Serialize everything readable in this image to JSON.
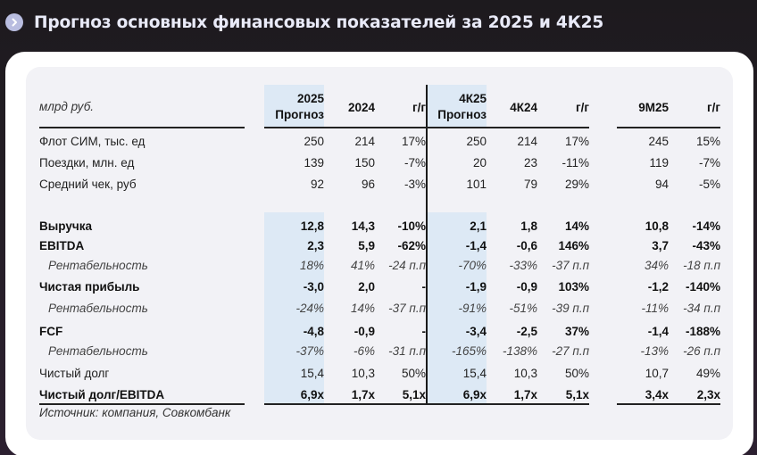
{
  "header": {
    "icon": "chevron-right-icon",
    "title": "Прогноз основных финансовых показателей за 2025 и 4К25"
  },
  "table": {
    "unit_label": "млрд руб.",
    "columns": [
      {
        "line1": "2025",
        "line2": "Прогноз"
      },
      {
        "line1": "",
        "line2": "2024"
      },
      {
        "line1": "",
        "line2": "г/г"
      },
      {
        "line1": "4К25",
        "line2": "Прогноз"
      },
      {
        "line1": "",
        "line2": "4К24"
      },
      {
        "line1": "",
        "line2": "г/г"
      },
      {
        "line1": "",
        "line2": "9М25"
      },
      {
        "line1": "",
        "line2": "г/г"
      }
    ],
    "rows": [
      {
        "label": "Флот СИМ, тыс. ед",
        "style": "normal",
        "values": [
          "250",
          "214",
          "17%",
          "250",
          "214",
          "17%",
          "245",
          "15%"
        ]
      },
      {
        "label": "Поездки, млн. ед",
        "style": "normal",
        "values": [
          "139",
          "150",
          "-7%",
          "20",
          "23",
          "-11%",
          "119",
          "-7%"
        ]
      },
      {
        "label": "Средний чек, руб",
        "style": "normal",
        "values": [
          "92",
          "96",
          "-3%",
          "101",
          "79",
          "29%",
          "94",
          "-5%"
        ]
      },
      {
        "label": "Выручка",
        "style": "bold",
        "values": [
          "12,8",
          "14,3",
          "-10%",
          "2,1",
          "1,8",
          "14%",
          "10,8",
          "-14%"
        ]
      },
      {
        "label": "EBITDA",
        "style": "bold",
        "values": [
          "2,3",
          "5,9",
          "-62%",
          "-1,4",
          "-0,6",
          "146%",
          "3,7",
          "-43%"
        ]
      },
      {
        "label": "Рентабельность",
        "style": "italic",
        "values": [
          "18%",
          "41%",
          "-24 п.п",
          "-70%",
          "-33%",
          "-37 п.п",
          "34%",
          "-18 п.п"
        ]
      },
      {
        "label": "Чистая прибыль",
        "style": "bold",
        "values": [
          "-3,0",
          "2,0",
          "-",
          "-1,9",
          "-0,9",
          "103%",
          "-1,2",
          "-140%"
        ]
      },
      {
        "label": "Рентабельность",
        "style": "italic",
        "values": [
          "-24%",
          "14%",
          "-37 п.п",
          "-91%",
          "-51%",
          "-39 п.п",
          "-11%",
          "-34 п.п"
        ]
      },
      {
        "label": "FCF",
        "style": "bold",
        "values": [
          "-4,8",
          "-0,9",
          "-",
          "-3,4",
          "-2,5",
          "37%",
          "-1,4",
          "-188%"
        ]
      },
      {
        "label": "Рентабельность",
        "style": "italic",
        "values": [
          "-37%",
          "-6%",
          "-31 п.п",
          "-165%",
          "-138%",
          "-27 п.п",
          "-13%",
          "-26 п.п"
        ]
      },
      {
        "label": "Чистый долг",
        "style": "normal",
        "values": [
          "15,4",
          "10,3",
          "50%",
          "15,4",
          "10,3",
          "50%",
          "10,7",
          "49%"
        ]
      },
      {
        "label": "Чистый долг/EBITDA",
        "style": "bold",
        "values": [
          "6,9x",
          "1,7x",
          "5,1x",
          "6,9x",
          "1,7x",
          "5,1x",
          "3,4x",
          "2,3x"
        ]
      }
    ],
    "source": "Источник: компания, Совкомбанк"
  },
  "colors": {
    "background": "#231d24",
    "title": "#e9eaf8",
    "forecast_highlight": "#dde9f5",
    "panel": "#f2f2f6"
  }
}
